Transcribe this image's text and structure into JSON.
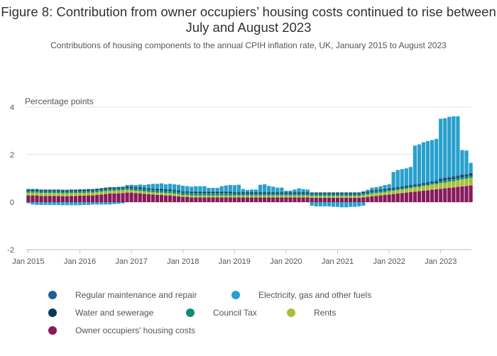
{
  "title": "Figure 8: Contribution from owner occupiers’ housing costs continued to rise between July and August 2023",
  "subtitle": "Contributions of housing components to the annual CPIH inflation rate, UK, January 2015 to August 2023",
  "chart_data": {
    "type": "bar",
    "stacked": true,
    "ylabel": "Percentage points",
    "ylim": [
      -2,
      4
    ],
    "yticks": [
      -2,
      0,
      2,
      4
    ],
    "xticks": [
      "Jan 2015",
      "Jan 2016",
      "Jan 2017",
      "Jan 2018",
      "Jan 2019",
      "Jan 2020",
      "Jan 2021",
      "Jan 2022",
      "Jan 2023"
    ],
    "grid": true,
    "legend_position": "bottom",
    "colors": {
      "ooh": "#871a5b",
      "rents": "#a8bd3a",
      "council": "#118c7b",
      "water": "#003c57",
      "maint": "#206095",
      "elec": "#27a0cc"
    },
    "series": [
      {
        "key": "maint",
        "name": "Regular maintenance and repair",
        "values": [
          0.03,
          0.03,
          0.03,
          0.03,
          0.03,
          0.03,
          0.03,
          0.03,
          0.03,
          0.03,
          0.03,
          0.03,
          0.03,
          0.03,
          0.03,
          0.03,
          0.03,
          0.03,
          0.03,
          0.03,
          0.03,
          0.03,
          0.03,
          0.03,
          0.03,
          0.03,
          0.03,
          0.03,
          0.03,
          0.03,
          0.03,
          0.03,
          0.03,
          0.03,
          0.03,
          0.03,
          0.03,
          0.03,
          0.03,
          0.03,
          0.03,
          0.03,
          0.03,
          0.03,
          0.03,
          0.03,
          0.03,
          0.03,
          0.03,
          0.03,
          0.03,
          0.03,
          0.03,
          0.03,
          0.03,
          0.03,
          0.03,
          0.03,
          0.03,
          0.03,
          0.03,
          0.03,
          0.03,
          0.03,
          0.03,
          0.03,
          0.03,
          0.03,
          0.03,
          0.03,
          0.03,
          0.03,
          0.03,
          0.03,
          0.03,
          0.03,
          0.03,
          0.03,
          0.03,
          0.03,
          0.03,
          0.03,
          0.03,
          0.03,
          0.04,
          0.04,
          0.04,
          0.04,
          0.04,
          0.04,
          0.04,
          0.04,
          0.04,
          0.05,
          0.05,
          0.05,
          0.05,
          0.05,
          0.05,
          0.05,
          0.05,
          0.05,
          0.05,
          0.05
        ]
      },
      {
        "key": "elec",
        "name": "Electricity, gas and other fuels",
        "values": [
          -0.05,
          -0.1,
          -0.12,
          -0.12,
          -0.12,
          -0.12,
          -0.12,
          -0.12,
          -0.13,
          -0.13,
          -0.13,
          -0.13,
          -0.13,
          -0.12,
          -0.12,
          -0.1,
          -0.1,
          -0.1,
          -0.1,
          -0.1,
          -0.08,
          -0.07,
          -0.05,
          0.05,
          0.06,
          0.07,
          0.1,
          0.1,
          0.15,
          0.18,
          0.2,
          0.22,
          0.2,
          0.22,
          0.22,
          0.22,
          0.22,
          0.2,
          0.2,
          0.22,
          0.22,
          0.22,
          0.15,
          0.15,
          0.15,
          0.22,
          0.25,
          0.27,
          0.28,
          0.3,
          0.12,
          0.08,
          0.1,
          0.1,
          0.3,
          0.32,
          0.25,
          0.22,
          0.18,
          0.18,
          0.05,
          0.05,
          0.1,
          0.15,
          0.12,
          0.1,
          -0.15,
          -0.18,
          -0.18,
          -0.18,
          -0.18,
          -0.2,
          -0.2,
          -0.22,
          -0.22,
          -0.2,
          -0.2,
          -0.18,
          -0.15,
          0.05,
          0.1,
          0.1,
          0.12,
          0.15,
          0.15,
          0.65,
          0.7,
          0.72,
          0.72,
          0.75,
          1.62,
          1.65,
          1.7,
          1.72,
          1.72,
          1.75,
          2.5,
          2.5,
          2.52,
          2.52,
          2.48,
          1.02,
          0.98,
          0.42,
          0.35
        ]
      },
      {
        "key": "water",
        "name": "Water and sewerage",
        "values": [
          0.04,
          0.04,
          0.04,
          0.04,
          0.04,
          0.04,
          0.04,
          0.04,
          0.04,
          0.04,
          0.04,
          0.04,
          0.04,
          0.04,
          0.04,
          0.04,
          0.04,
          0.04,
          0.04,
          0.04,
          0.04,
          0.04,
          0.04,
          0.04,
          0.04,
          0.04,
          0.04,
          0.04,
          0.04,
          0.04,
          0.04,
          0.04,
          0.04,
          0.04,
          0.04,
          0.04,
          0.04,
          0.04,
          0.04,
          0.04,
          0.04,
          0.04,
          0.04,
          0.04,
          0.04,
          0.04,
          0.04,
          0.04,
          0.04,
          0.04,
          0.04,
          0.04,
          0.04,
          0.04,
          0.04,
          0.04,
          0.04,
          0.04,
          0.04,
          0.04,
          0.04,
          0.04,
          0.04,
          0.04,
          0.04,
          0.04,
          0.04,
          0.04,
          0.04,
          0.04,
          0.04,
          0.04,
          0.04,
          0.04,
          0.04,
          0.04,
          0.04,
          0.04,
          0.04,
          0.04,
          0.04,
          0.04,
          0.04,
          0.04,
          0.04,
          0.04,
          0.04,
          0.04,
          0.04,
          0.04,
          0.04,
          0.04,
          0.04,
          0.04,
          0.04,
          0.04,
          0.06,
          0.06,
          0.06,
          0.06,
          0.06,
          0.06,
          0.06,
          0.06,
          0.06
        ]
      },
      {
        "key": "council",
        "name": "Council Tax",
        "values": [
          0.08,
          0.08,
          0.08,
          0.08,
          0.08,
          0.08,
          0.08,
          0.08,
          0.08,
          0.08,
          0.08,
          0.08,
          0.08,
          0.08,
          0.08,
          0.08,
          0.08,
          0.08,
          0.08,
          0.08,
          0.08,
          0.08,
          0.08,
          0.08,
          0.1,
          0.1,
          0.1,
          0.1,
          0.1,
          0.1,
          0.1,
          0.1,
          0.1,
          0.1,
          0.1,
          0.1,
          0.1,
          0.1,
          0.1,
          0.1,
          0.1,
          0.1,
          0.1,
          0.1,
          0.1,
          0.1,
          0.1,
          0.1,
          0.08,
          0.08,
          0.08,
          0.08,
          0.08,
          0.08,
          0.08,
          0.08,
          0.08,
          0.08,
          0.08,
          0.08,
          0.08,
          0.08,
          0.08,
          0.08,
          0.08,
          0.08,
          0.08,
          0.08,
          0.08,
          0.08,
          0.08,
          0.08,
          0.08,
          0.08,
          0.08,
          0.08,
          0.08,
          0.08,
          0.08,
          0.08,
          0.08,
          0.08,
          0.08,
          0.08,
          0.06,
          0.06,
          0.06,
          0.06,
          0.06,
          0.06,
          0.06,
          0.06,
          0.06,
          0.06,
          0.06,
          0.06,
          0.1,
          0.1,
          0.1,
          0.1,
          0.1,
          0.1,
          0.1,
          0.1,
          0.1
        ]
      },
      {
        "key": "rents",
        "name": "Rents",
        "values": [
          0.12,
          0.12,
          0.12,
          0.12,
          0.12,
          0.12,
          0.12,
          0.12,
          0.12,
          0.12,
          0.12,
          0.12,
          0.12,
          0.12,
          0.12,
          0.12,
          0.12,
          0.12,
          0.12,
          0.12,
          0.12,
          0.12,
          0.12,
          0.12,
          0.1,
          0.1,
          0.1,
          0.1,
          0.1,
          0.1,
          0.1,
          0.1,
          0.1,
          0.1,
          0.1,
          0.1,
          0.08,
          0.08,
          0.08,
          0.08,
          0.08,
          0.08,
          0.08,
          0.08,
          0.08,
          0.08,
          0.08,
          0.08,
          0.08,
          0.08,
          0.08,
          0.08,
          0.08,
          0.08,
          0.08,
          0.08,
          0.08,
          0.08,
          0.08,
          0.08,
          0.08,
          0.08,
          0.08,
          0.08,
          0.08,
          0.08,
          0.08,
          0.08,
          0.08,
          0.08,
          0.08,
          0.08,
          0.08,
          0.08,
          0.08,
          0.08,
          0.08,
          0.08,
          0.1,
          0.1,
          0.12,
          0.12,
          0.12,
          0.12,
          0.14,
          0.14,
          0.15,
          0.15,
          0.16,
          0.17,
          0.18,
          0.18,
          0.2,
          0.2,
          0.22,
          0.22,
          0.24,
          0.24,
          0.26,
          0.26,
          0.28,
          0.3,
          0.3,
          0.32,
          0.34
        ]
      },
      {
        "key": "ooh",
        "name": "Owner occupiers' housing costs",
        "values": [
          0.28,
          0.28,
          0.28,
          0.26,
          0.26,
          0.26,
          0.26,
          0.26,
          0.25,
          0.25,
          0.26,
          0.26,
          0.27,
          0.27,
          0.28,
          0.28,
          0.3,
          0.32,
          0.34,
          0.36,
          0.36,
          0.37,
          0.38,
          0.4,
          0.4,
          0.38,
          0.37,
          0.35,
          0.33,
          0.32,
          0.3,
          0.3,
          0.28,
          0.28,
          0.26,
          0.24,
          0.22,
          0.22,
          0.2,
          0.2,
          0.2,
          0.2,
          0.2,
          0.2,
          0.2,
          0.2,
          0.2,
          0.2,
          0.2,
          0.2,
          0.2,
          0.2,
          0.2,
          0.2,
          0.2,
          0.2,
          0.2,
          0.2,
          0.2,
          0.2,
          0.2,
          0.2,
          0.2,
          0.2,
          0.2,
          0.2,
          0.18,
          0.18,
          0.18,
          0.18,
          0.18,
          0.18,
          0.18,
          0.18,
          0.18,
          0.18,
          0.18,
          0.18,
          0.2,
          0.22,
          0.24,
          0.26,
          0.28,
          0.3,
          0.32,
          0.34,
          0.36,
          0.38,
          0.4,
          0.42,
          0.44,
          0.46,
          0.48,
          0.5,
          0.52,
          0.54,
          0.56,
          0.58,
          0.6,
          0.62,
          0.64,
          0.66,
          0.68,
          0.7,
          0.72
        ]
      }
    ]
  }
}
